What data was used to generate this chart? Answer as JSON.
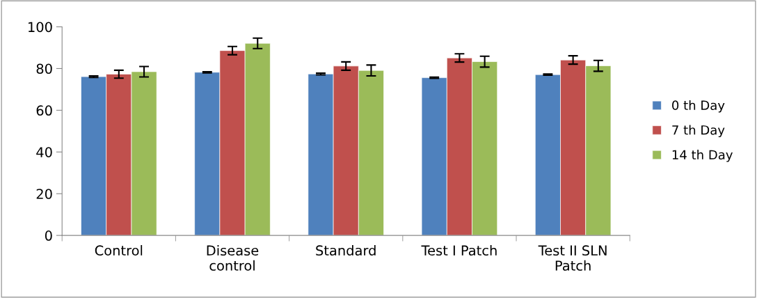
{
  "chart_data": {
    "type": "bar",
    "categories": [
      "Control",
      "Disease\ncontrol",
      "Standard",
      "Test I Patch",
      "Test II SLN\nPatch"
    ],
    "series": [
      {
        "name": "0 th Day",
        "color": "#4f81bd",
        "values": [
          76.1,
          78.2,
          77.4,
          75.6,
          77.1
        ],
        "errors": [
          0.4,
          0.3,
          0.4,
          0.3,
          0.3
        ]
      },
      {
        "name": "7 th Day",
        "color": "#c0504d",
        "values": [
          77.3,
          88.6,
          81.2,
          85.1,
          84.1
        ],
        "errors": [
          1.9,
          2.0,
          2.0,
          2.0,
          2.0
        ]
      },
      {
        "name": "14 th Day",
        "color": "#9bbb59",
        "values": [
          78.5,
          92.1,
          79.1,
          83.3,
          81.3
        ],
        "errors": [
          2.5,
          2.5,
          2.6,
          2.6,
          2.6
        ]
      }
    ],
    "ylim": [
      0,
      100
    ],
    "yticks": [
      0,
      20,
      40,
      60,
      80,
      100
    ],
    "grid": false,
    "legend": "right"
  }
}
